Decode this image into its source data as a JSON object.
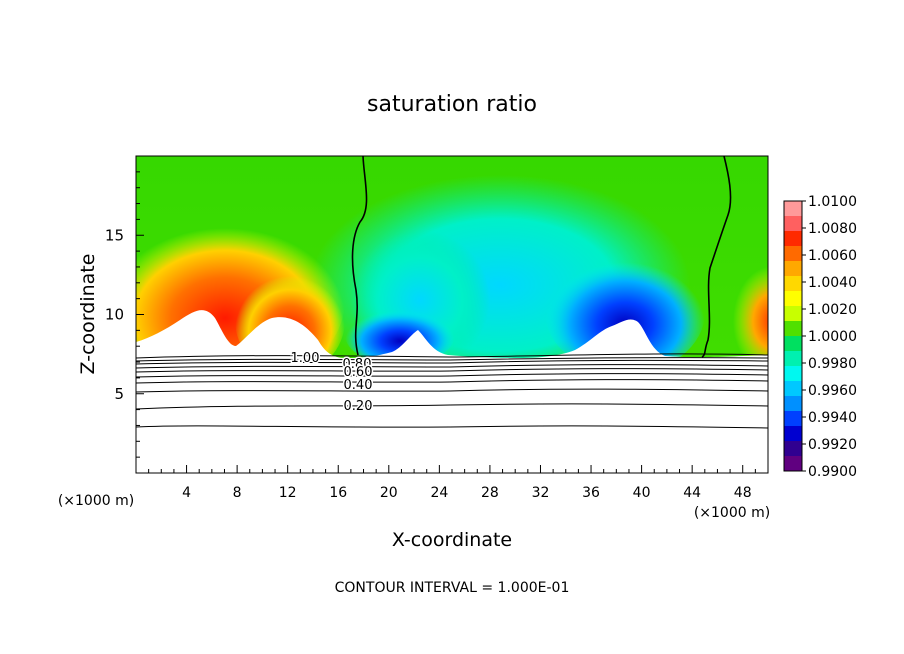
{
  "chart_data": {
    "type": "heatmap",
    "title": "saturation ratio",
    "xlabel": "X-coordinate",
    "ylabel": "Z-coordinate",
    "x_unit_left": "(×1000 m)",
    "x_unit_right": "(×1000 m)",
    "footer": "CONTOUR INTERVAL = 1.000E-01",
    "xlim": [
      0,
      50
    ],
    "ylim": [
      0,
      20
    ],
    "x_ticks": [
      "4",
      "8",
      "12",
      "16",
      "20",
      "24",
      "28",
      "32",
      "36",
      "40",
      "44",
      "48"
    ],
    "x_tick_values": [
      4,
      8,
      12,
      16,
      20,
      24,
      28,
      32,
      36,
      40,
      44,
      48
    ],
    "y_ticks": [
      "5",
      "10",
      "15"
    ],
    "y_tick_values": [
      5,
      10,
      15
    ],
    "colorbar": {
      "min": 0.99,
      "max": 1.01,
      "labels": [
        "1.0100",
        "1.0080",
        "1.0060",
        "1.0040",
        "1.0020",
        "1.0000",
        "0.9980",
        "0.9960",
        "0.9940",
        "0.9920",
        "0.9900"
      ],
      "values": [
        1.01,
        1.008,
        1.006,
        1.004,
        1.002,
        1.0,
        0.998,
        0.996,
        0.994,
        0.992,
        0.99
      ],
      "colors": [
        "#ff9a9a",
        "#ff6060",
        "#ff2a00",
        "#ff6a00",
        "#ffa800",
        "#ffd800",
        "#ffff00",
        "#c8ff00",
        "#50e000",
        "#00e060",
        "#00f0b0",
        "#00f8f0",
        "#00c8ff",
        "#0090ff",
        "#0040ff",
        "#0000d0",
        "#300090",
        "#600080"
      ]
    },
    "contour_labels": [
      {
        "text": "1.00",
        "value": 1.0
      },
      {
        "text": "0.80",
        "value": 0.8
      },
      {
        "text": "0.60",
        "value": 0.6
      },
      {
        "text": "0.40",
        "value": 0.4
      },
      {
        "text": "0.20",
        "value": 0.2
      }
    ],
    "unity_contours_x": [
      17.5,
      46.5
    ],
    "colors": {
      "background": "#ffffff",
      "frame": "#000000"
    }
  }
}
